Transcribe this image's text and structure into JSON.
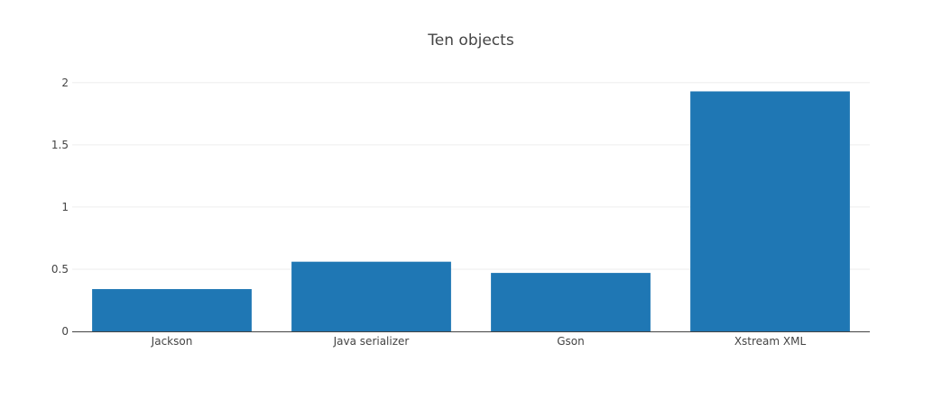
{
  "chart_data": {
    "type": "bar",
    "title": "Ten objects",
    "xlabel": "",
    "ylabel": "",
    "categories": [
      "Jackson",
      "Java serializer",
      "Gson",
      "Xstream XML"
    ],
    "values": [
      0.34,
      0.56,
      0.47,
      1.93
    ],
    "ylim": [
      0,
      2.1
    ],
    "yticks": [
      0,
      0.5,
      1,
      1.5,
      2
    ],
    "ytick_labels": [
      "0",
      "0.5",
      "1",
      "1.5",
      "2"
    ],
    "bar_color": "#1f77b4",
    "grid": true,
    "legend": false
  }
}
